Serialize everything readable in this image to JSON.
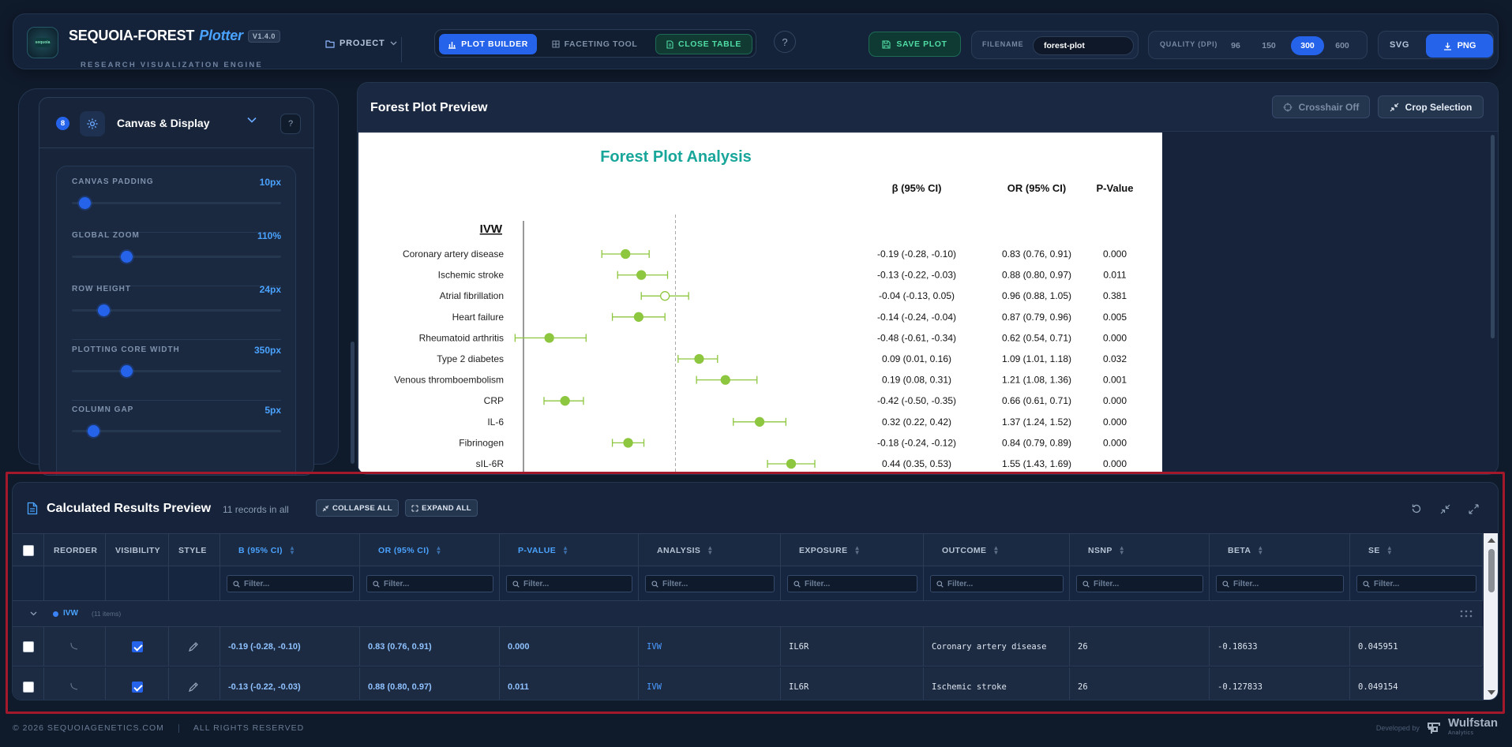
{
  "header": {
    "logo_text": "sequoia",
    "brand_name": "SEQUOIA-FOREST",
    "brand_suffix": "Plotter",
    "version": "V1.4.0",
    "subtitle": "RESEARCH VISUALIZATION ENGINE",
    "project_label": "PROJECT",
    "modes": [
      {
        "label": "PLOT BUILDER",
        "active": true
      },
      {
        "label": "FACETING TOOL",
        "active": false
      },
      {
        "label": "CLOSE TABLE",
        "active": false
      }
    ],
    "help_label": "?",
    "save_label": "SAVE PLOT",
    "filename_label": "FILENAME",
    "filename_value": "forest-plot",
    "quality_label": "QUALITY (DPI)",
    "quality_options": [
      "96",
      "150",
      "300",
      "600"
    ],
    "quality_selected": "300",
    "format_svg": "SVG",
    "format_png": "PNG"
  },
  "sidebar": {
    "section_number": "8",
    "section_title": "Canvas & Display",
    "help_label": "?",
    "sliders": [
      {
        "label": "CANVAS PADDING",
        "value": "10px",
        "position": 0.06
      },
      {
        "label": "GLOBAL ZOOM",
        "value": "110%",
        "position": 0.26
      },
      {
        "label": "ROW HEIGHT",
        "value": "24px",
        "position": 0.15
      },
      {
        "label": "PLOTTING CORE WIDTH",
        "value": "350px",
        "position": 0.26
      },
      {
        "label": "COLUMN GAP",
        "value": "5px",
        "position": 0.1
      }
    ]
  },
  "preview": {
    "title": "Forest Plot Preview",
    "crosshair_label": "Crosshair Off",
    "crop_label": "Crop Selection"
  },
  "chart_data": {
    "type": "forest",
    "title": "Forest Plot Analysis",
    "group": "IVW",
    "columns": [
      "β (95% CI)",
      "OR (95% CI)",
      "P-Value"
    ],
    "reference_line": 0,
    "colors": {
      "marker": "#8dc63f",
      "title": "#18a69a"
    },
    "rows": [
      {
        "label": "Coronary artery disease",
        "beta": -0.19,
        "lower": -0.28,
        "upper": -0.1,
        "beta_ci": "-0.19 (-0.28, -0.10)",
        "or_ci": "0.83 (0.76, 0.91)",
        "p": "0.000",
        "filled": true
      },
      {
        "label": "Ischemic stroke",
        "beta": -0.13,
        "lower": -0.22,
        "upper": -0.03,
        "beta_ci": "-0.13 (-0.22, -0.03)",
        "or_ci": "0.88 (0.80, 0.97)",
        "p": "0.011",
        "filled": true
      },
      {
        "label": "Atrial fibrillation",
        "beta": -0.04,
        "lower": -0.13,
        "upper": 0.05,
        "beta_ci": "-0.04 (-0.13, 0.05)",
        "or_ci": "0.96 (0.88, 1.05)",
        "p": "0.381",
        "filled": false
      },
      {
        "label": "Heart failure",
        "beta": -0.14,
        "lower": -0.24,
        "upper": -0.04,
        "beta_ci": "-0.14 (-0.24, -0.04)",
        "or_ci": "0.87 (0.79, 0.96)",
        "p": "0.005",
        "filled": true
      },
      {
        "label": "Rheumatoid arthritis",
        "beta": -0.48,
        "lower": -0.61,
        "upper": -0.34,
        "beta_ci": "-0.48 (-0.61, -0.34)",
        "or_ci": "0.62 (0.54, 0.71)",
        "p": "0.000",
        "filled": true
      },
      {
        "label": "Type 2 diabetes",
        "beta": 0.09,
        "lower": 0.01,
        "upper": 0.16,
        "beta_ci": "0.09 (0.01, 0.16)",
        "or_ci": "1.09 (1.01, 1.18)",
        "p": "0.032",
        "filled": true
      },
      {
        "label": "Venous thromboembolism",
        "beta": 0.19,
        "lower": 0.08,
        "upper": 0.31,
        "beta_ci": "0.19 (0.08, 0.31)",
        "or_ci": "1.21 (1.08, 1.36)",
        "p": "0.001",
        "filled": true
      },
      {
        "label": "CRP",
        "beta": -0.42,
        "lower": -0.5,
        "upper": -0.35,
        "beta_ci": "-0.42 (-0.50, -0.35)",
        "or_ci": "0.66 (0.61, 0.71)",
        "p": "0.000",
        "filled": true
      },
      {
        "label": "IL-6",
        "beta": 0.32,
        "lower": 0.22,
        "upper": 0.42,
        "beta_ci": "0.32 (0.22, 0.42)",
        "or_ci": "1.37 (1.24, 1.52)",
        "p": "0.000",
        "filled": true
      },
      {
        "label": "Fibrinogen",
        "beta": -0.18,
        "lower": -0.24,
        "upper": -0.12,
        "beta_ci": "-0.18 (-0.24, -0.12)",
        "or_ci": "0.84 (0.79, 0.89)",
        "p": "0.000",
        "filled": true
      },
      {
        "label": "sIL-6R",
        "beta": 0.44,
        "lower": 0.35,
        "upper": 0.53,
        "beta_ci": "0.44 (0.35, 0.53)",
        "or_ci": "1.55 (1.43, 1.69)",
        "p": "0.000",
        "filled": true
      }
    ]
  },
  "table": {
    "title": "Calculated Results Preview",
    "count_text": "11 records in all",
    "collapse_label": "COLLAPSE ALL",
    "expand_label": "EXPAND ALL",
    "headers": [
      "REORDER",
      "VISIBILITY",
      "STYLE",
      "Β (95% CI)",
      "OR (95% CI)",
      "P-VALUE",
      "ANALYSIS",
      "EXPOSURE",
      "OUTCOME",
      "NSNP",
      "BETA",
      "SE"
    ],
    "filter_placeholder": "Filter...",
    "group_name": "IVW",
    "group_count": "(11 items)",
    "rows": [
      {
        "beta_ci": "-0.19 (-0.28, -0.10)",
        "or_ci": "0.83 (0.76, 0.91)",
        "p": "0.000",
        "analysis": "IVW",
        "exposure": "IL6R",
        "outcome": "Coronary artery disease",
        "nsnp": "26",
        "beta": "-0.18633",
        "se": "0.045951",
        "visible": true
      },
      {
        "beta_ci": "-0.13 (-0.22, -0.03)",
        "or_ci": "0.88 (0.80, 0.97)",
        "p": "0.011",
        "analysis": "IVW",
        "exposure": "IL6R",
        "outcome": "Ischemic stroke",
        "nsnp": "26",
        "beta": "-0.127833",
        "se": "0.049154",
        "visible": true
      }
    ]
  },
  "footer": {
    "copyright": "© 2026 SEQUOIAGENETICS.COM",
    "rights": "ALL RIGHTS RESERVED",
    "developed_by": "Developed by",
    "company": "Wulfstan",
    "company_sub": "Analytics"
  }
}
